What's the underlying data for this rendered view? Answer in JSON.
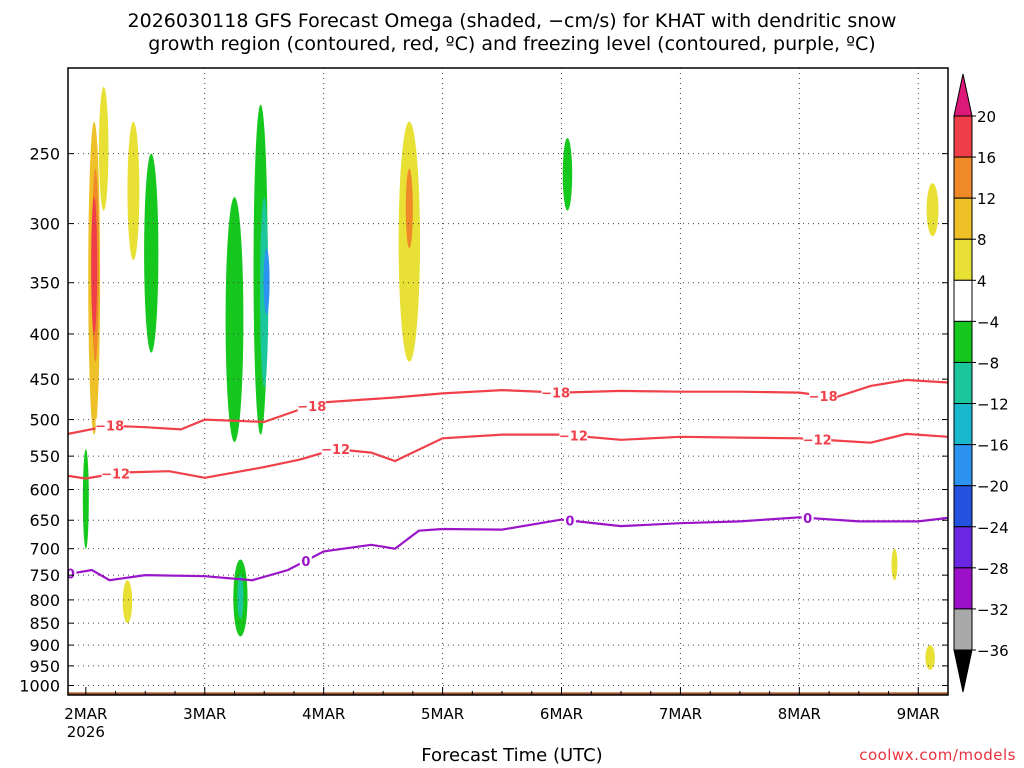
{
  "chart_data": {
    "type": "heatmap",
    "title_line1": "2026030118 GFS Forecast Omega (shaded, −cm/s) for KHAT with dendritic snow",
    "title_line2": "growth region (contoured, red, ºC) and freezing level (contoured, purple, ºC)",
    "xlabel": "Forecast Time (UTC)",
    "credit": "coolwx.com/models",
    "x_ticks": [
      {
        "label": "2MAR",
        "sub": "2026",
        "day": 2
      },
      {
        "label": "3MAR",
        "day": 3
      },
      {
        "label": "4MAR",
        "day": 4
      },
      {
        "label": "5MAR",
        "day": 5
      },
      {
        "label": "6MAR",
        "day": 6
      },
      {
        "label": "7MAR",
        "day": 7
      },
      {
        "label": "8MAR",
        "day": 8
      },
      {
        "label": "9MAR",
        "day": 9
      }
    ],
    "xlim_days": [
      1.85,
      9.25
    ],
    "ylim_hpa": [
      1025,
      200
    ],
    "y_ticks": [
      250,
      300,
      350,
      400,
      450,
      500,
      550,
      600,
      650,
      700,
      750,
      800,
      850,
      900,
      950,
      1000
    ],
    "colorbar": {
      "labels": [
        "20",
        "16",
        "12",
        "8",
        "4",
        "−4",
        "−8",
        "−12",
        "−16",
        "−20",
        "−24",
        "−28",
        "−32",
        "−36"
      ],
      "colors": [
        "#ef3e4a",
        "#f08a29",
        "#eec128",
        "#e8e034",
        "#ffffff",
        "#16c81e",
        "#1bc79a",
        "#1ab8cd",
        "#2c93f0",
        "#2451dd",
        "#6a26e0",
        "#9c10c9",
        "#a9a9a9"
      ],
      "top_arrow_color": "#dc1978",
      "bottom_arrow_color": "#000000"
    },
    "contours": [
      {
        "name": "-18 C",
        "label": "−18",
        "color": "#f0404a",
        "x": [
          1.85,
          2.2,
          2.5,
          2.8,
          3.0,
          3.5,
          3.8,
          4.0,
          4.3,
          4.6,
          5.0,
          5.5,
          6.0,
          6.5,
          7.0,
          7.5,
          8.0,
          8.3,
          8.6,
          8.9,
          9.25
        ],
        "p": [
          519,
          508,
          510,
          513,
          500,
          503,
          487,
          478,
          475,
          472,
          467,
          463,
          466,
          464,
          465,
          465,
          466,
          472,
          458,
          451,
          454
        ],
        "labels_at": [
          2.2,
          3.9,
          5.95,
          8.2
        ]
      },
      {
        "name": "-12 C",
        "label": "−12",
        "color": "#f0404a",
        "x": [
          1.85,
          2.0,
          2.3,
          2.7,
          3.0,
          3.5,
          3.8,
          4.1,
          4.4,
          4.6,
          5.0,
          5.5,
          6.0,
          6.5,
          7.0,
          7.5,
          8.0,
          8.3,
          8.6,
          8.9,
          9.25
        ],
        "p": [
          579,
          583,
          574,
          572,
          582,
          566,
          555,
          540,
          545,
          557,
          525,
          520,
          520,
          527,
          523,
          524,
          525,
          528,
          531,
          519,
          523
        ],
        "labels_at": [
          2.25,
          4.1,
          6.1,
          8.15
        ]
      },
      {
        "name": "0 C freezing level",
        "label": "0",
        "color": "#9a14c8",
        "x": [
          1.85,
          2.05,
          2.2,
          2.5,
          3.0,
          3.4,
          3.7,
          4.0,
          4.4,
          4.6,
          4.8,
          5.0,
          5.5,
          6.0,
          6.5,
          7.0,
          7.5,
          8.0,
          8.5,
          9.0,
          9.25
        ],
        "p": [
          748,
          740,
          760,
          750,
          752,
          760,
          740,
          705,
          693,
          700,
          668,
          665,
          666,
          649,
          660,
          655,
          652,
          645,
          652,
          652,
          646
        ],
        "labels_at": [
          1.87,
          3.85,
          6.07,
          8.07
        ]
      }
    ],
    "omega_areas": [
      {
        "color": "#eec128",
        "x": 2.07,
        "p1": 230,
        "p2": 520,
        "w": 0.1
      },
      {
        "color": "#f08a29",
        "x": 2.08,
        "p1": 260,
        "p2": 430,
        "w": 0.06
      },
      {
        "color": "#ef3e4a",
        "x": 2.07,
        "p1": 280,
        "p2": 400,
        "w": 0.035
      },
      {
        "color": "#e8e034",
        "x": 2.15,
        "p1": 210,
        "p2": 290,
        "w": 0.08
      },
      {
        "color": "#e8e034",
        "x": 2.4,
        "p1": 230,
        "p2": 330,
        "w": 0.1
      },
      {
        "color": "#1bc79a",
        "x": 2.55,
        "p1": 260,
        "p2": 400,
        "w": 0.08
      },
      {
        "color": "#16c81e",
        "x": 2.55,
        "p1": 250,
        "p2": 420,
        "w": 0.12
      },
      {
        "color": "#16c81e",
        "x": 3.25,
        "p1": 280,
        "p2": 530,
        "w": 0.15
      },
      {
        "color": "#16c81e",
        "x": 3.47,
        "p1": 220,
        "p2": 520,
        "w": 0.12
      },
      {
        "color": "#1bc79a",
        "x": 3.5,
        "p1": 280,
        "p2": 460,
        "w": 0.07
      },
      {
        "color": "#2c93f0",
        "x": 3.52,
        "p1": 320,
        "p2": 380,
        "w": 0.03
      },
      {
        "color": "#e8e034",
        "x": 4.72,
        "p1": 230,
        "p2": 430,
        "w": 0.18
      },
      {
        "color": "#f08a29",
        "x": 4.72,
        "p1": 260,
        "p2": 320,
        "w": 0.06
      },
      {
        "color": "#16c81e",
        "x": 6.05,
        "p1": 240,
        "p2": 290,
        "w": 0.08
      },
      {
        "color": "#16c81e",
        "x": 3.3,
        "p1": 720,
        "p2": 880,
        "w": 0.12
      },
      {
        "color": "#1bc79a",
        "x": 3.3,
        "p1": 750,
        "p2": 840,
        "w": 0.05
      },
      {
        "color": "#16c81e",
        "x": 2.0,
        "p1": 540,
        "p2": 700,
        "w": 0.04
      },
      {
        "color": "#e8e034",
        "x": 2.35,
        "p1": 760,
        "p2": 850,
        "w": 0.08
      },
      {
        "color": "#e8e034",
        "x": 8.8,
        "p1": 700,
        "p2": 760,
        "w": 0.05
      },
      {
        "color": "#e8e034",
        "x": 9.1,
        "p1": 900,
        "p2": 960,
        "w": 0.08
      },
      {
        "color": "#e8e034",
        "x": 9.12,
        "p1": 270,
        "p2": 310,
        "w": 0.1
      }
    ]
  }
}
